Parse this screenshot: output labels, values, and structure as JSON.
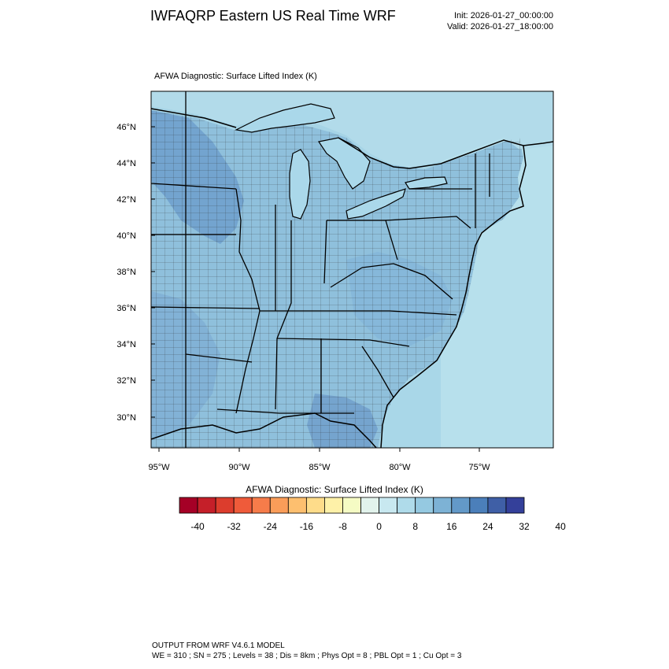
{
  "header": {
    "title": "IWFAQRP Eastern US Real Time WRF",
    "init": "Init: 2026-01-27_00:00:00",
    "valid": "Valid: 2026-01-27_18:00:00"
  },
  "plot": {
    "title": "AFWA Diagnostic: Surface Lifted Index   (K)",
    "lat_labels": [
      "46°N",
      "44°N",
      "42°N",
      "40°N",
      "38°N",
      "36°N",
      "34°N",
      "32°N",
      "30°N"
    ],
    "lon_labels": [
      "95°W",
      "90°W",
      "85°W",
      "80°W",
      "75°W"
    ]
  },
  "colorbar": {
    "title": "AFWA Diagnostic: Surface Lifted Index  (K)",
    "tick_labels": [
      "-40",
      "-32",
      "-24",
      "-16",
      "-8",
      "0",
      "8",
      "16",
      "24",
      "32",
      "40"
    ],
    "colors": [
      "#a50026",
      "#c51f29",
      "#dc3d2d",
      "#ef5b3a",
      "#f67c4a",
      "#fa9d59",
      "#fdbf6f",
      "#fedc8a",
      "#fef1a8",
      "#f5fbc4",
      "#e2f3ec",
      "#c8e8f0",
      "#afdbea",
      "#95c9e1",
      "#7db2d5",
      "#6399c8",
      "#4b7fba",
      "#3f5fa6",
      "#34409a"
    ]
  },
  "footer": {
    "line1": "OUTPUT FROM WRF V4.6.1 MODEL",
    "line2": "WE = 310 ; SN = 275 ; Levels = 38 ; Dis = 8km ; Phys Opt = 8 ; PBL Opt = 1 ; Cu Opt = 3"
  }
}
